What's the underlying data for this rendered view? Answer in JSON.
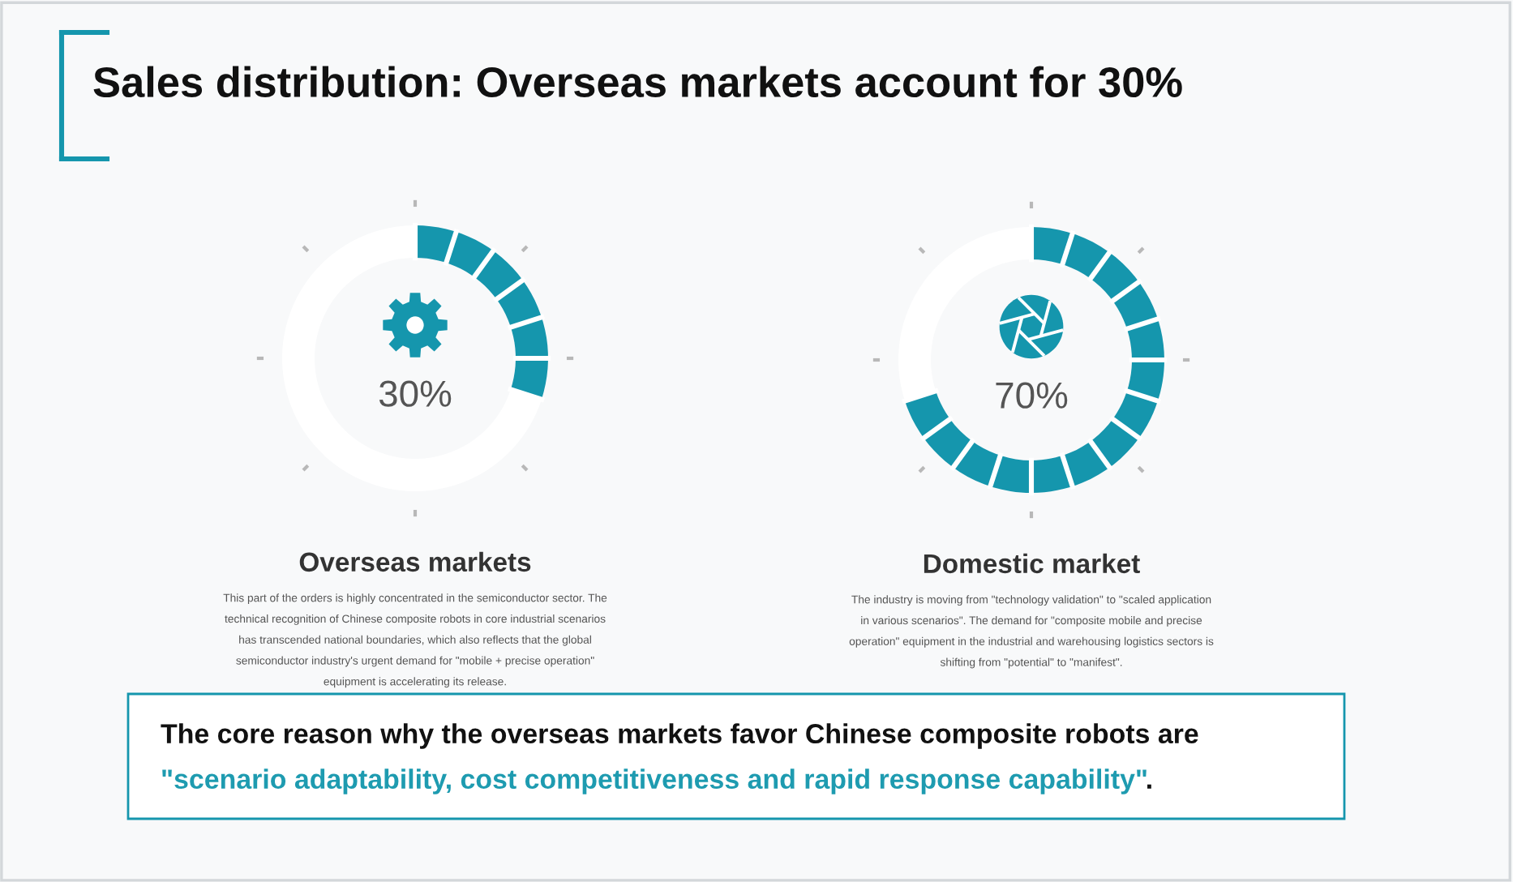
{
  "chart_data": [
    {
      "type": "other",
      "title": "Sales distribution: Overseas markets account for 30%"
    },
    {
      "type": "donut",
      "title": "Overseas markets",
      "categories": [
        null,
        null
      ],
      "values": [
        30,
        70
      ],
      "colors": [
        "#1596ad",
        "#ffffff"
      ],
      "annotations": [
        "30%",
        "This part of the orders is highly concentrated in the semiconductor sector. The technical recognition of Chinese composite robots in core industrial scenarios has transcended national boundaries, which also reflects that the global semiconductor industry's urgent demand for \"mobile + precise operation\" equipment is accelerating its release."
      ]
    },
    {
      "type": "donut",
      "title": "Domestic market",
      "categories": [
        null,
        null
      ],
      "values": [
        70,
        30
      ],
      "colors": [
        "#1596ad",
        "#ffffff"
      ],
      "annotations": [
        "70%",
        "The industry is moving from \"technology validation\" to \"scaled application in various scenarios\". The demand for \"composite mobile and precise operation\" equipment in the industrial and warehousing logistics sectors is shifting from \"potential\" to \"manifest\"."
      ]
    },
    {
      "type": "other",
      "annotations": [
        "The core reason why the overseas markets favor Chinese composite robots are",
        "\"scenario adaptability, cost competitiveness and rapid response capability\"",
        "."
      ]
    }
  ]
}
